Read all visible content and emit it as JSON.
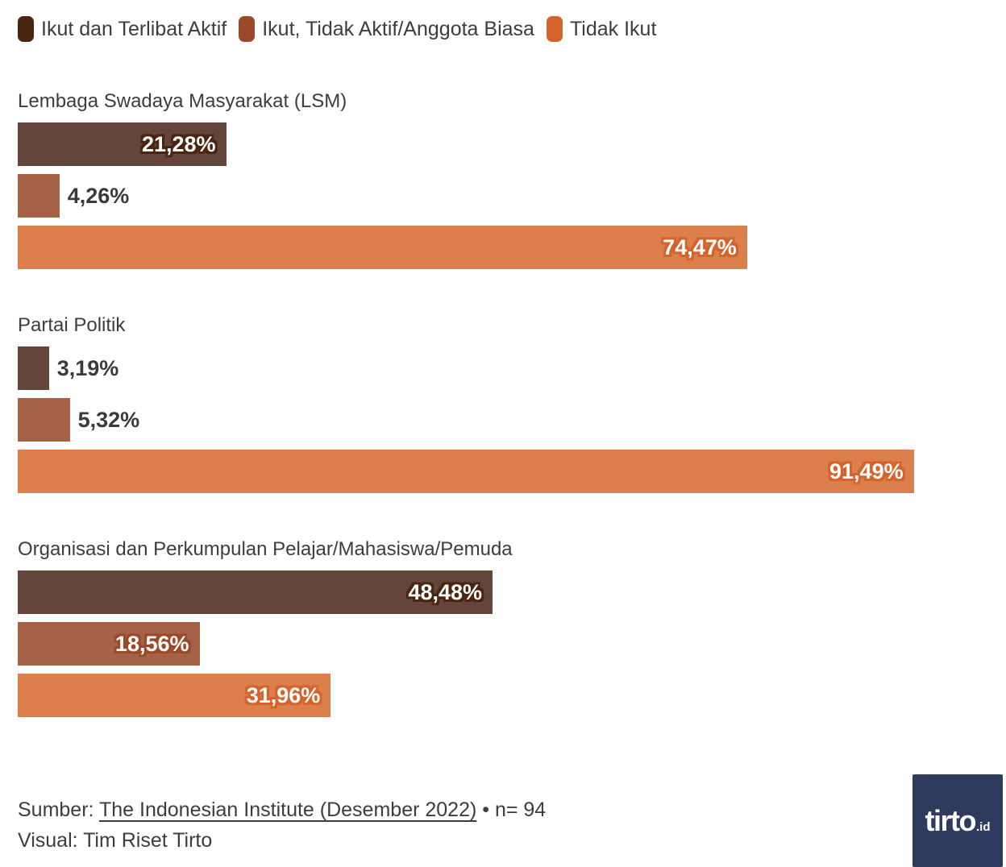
{
  "legend": {
    "items": [
      {
        "label": "Ikut dan Terlibat Aktif",
        "color": "#4A2512"
      },
      {
        "label": "Ikut, Tidak Aktif/Anggota Biasa",
        "color": "#9A4A28"
      },
      {
        "label": "Tidak Ikut",
        "color": "#D4632C"
      }
    ]
  },
  "chart_data": {
    "type": "bar",
    "orientation": "horizontal",
    "grid": false,
    "legend_position": "top",
    "value_suffix": "%",
    "decimal_separator": ",",
    "xlim": [
      0,
      100
    ],
    "categories": [
      "Lembaga Swadaya Masyarakat (LSM)",
      "Partai Politik",
      "Organisasi dan Perkumpulan Pelajar/Mahasiswa/Pemuda"
    ],
    "series": [
      {
        "name": "Ikut dan Terlibat Aktif",
        "color": "#4A2512",
        "bar_color": "#634539",
        "values": [
          21.28,
          3.19,
          48.48
        ],
        "labels": [
          "21,28%",
          "3,19%",
          "48,48%"
        ]
      },
      {
        "name": "Ikut, Tidak Aktif/Anggota Biasa",
        "color": "#9A4A28",
        "bar_color": "#A56246",
        "values": [
          4.26,
          5.32,
          18.56
        ],
        "labels": [
          "4,26%",
          "5,32%",
          "18,56%"
        ]
      },
      {
        "name": "Tidak Ikut",
        "color": "#D4632C",
        "bar_color": "#DD7F4C",
        "values": [
          74.47,
          91.49,
          31.96
        ],
        "labels": [
          "74,47%",
          "91,49%",
          "31,96%"
        ]
      }
    ]
  },
  "footer": {
    "source_prefix": "Sumber: ",
    "source_link": "The Indonesian Institute (Desember 2022)",
    "source_suffix": " • n= 94",
    "visual_line": "Visual: Tim Riset Tirto",
    "logo": {
      "text": "tirto",
      "suffix": ".id",
      "bg_color": "#2E3B5E"
    }
  }
}
